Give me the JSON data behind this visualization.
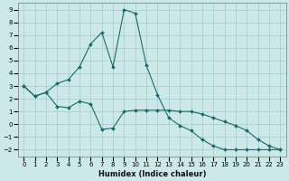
{
  "xlabel": "Humidex (Indice chaleur)",
  "background_color": "#cce8e8",
  "grid_color": "#aacfcf",
  "line_color": "#1a6b6b",
  "xlim": [
    -0.5,
    23.5
  ],
  "ylim": [
    -2.5,
    9.5
  ],
  "yticks": [
    -2,
    -1,
    0,
    1,
    2,
    3,
    4,
    5,
    6,
    7,
    8,
    9
  ],
  "xticks": [
    0,
    1,
    2,
    3,
    4,
    5,
    6,
    7,
    8,
    9,
    10,
    11,
    12,
    13,
    14,
    15,
    16,
    17,
    18,
    19,
    20,
    21,
    22,
    23
  ],
  "line1_x": [
    0,
    1,
    2,
    3,
    4,
    5,
    6,
    7,
    8,
    9,
    10,
    11,
    12,
    13,
    14,
    15,
    16,
    17,
    18,
    19,
    20,
    21,
    22,
    23
  ],
  "line1_y": [
    3.0,
    2.2,
    2.5,
    1.4,
    1.3,
    1.8,
    1.6,
    -0.4,
    -0.3,
    1.0,
    1.1,
    1.1,
    1.1,
    1.1,
    1.0,
    1.0,
    0.8,
    0.5,
    0.2,
    -0.1,
    -0.5,
    -1.2,
    -1.7,
    -2.0
  ],
  "line2_x": [
    0,
    1,
    2,
    3,
    4,
    5,
    6,
    7,
    8,
    9,
    10,
    11,
    12,
    13,
    14,
    15,
    16,
    17,
    18,
    19,
    20,
    21,
    22,
    23
  ],
  "line2_y": [
    3.0,
    2.2,
    2.5,
    3.2,
    3.5,
    4.5,
    6.3,
    7.2,
    4.5,
    9.0,
    8.7,
    4.6,
    2.3,
    0.5,
    -0.1,
    -0.5,
    -1.2,
    -1.7,
    -2.0,
    -2.0,
    -2.0,
    -2.0,
    -2.0,
    -2.0
  ],
  "figwidth": 3.2,
  "figheight": 2.0,
  "dpi": 100
}
